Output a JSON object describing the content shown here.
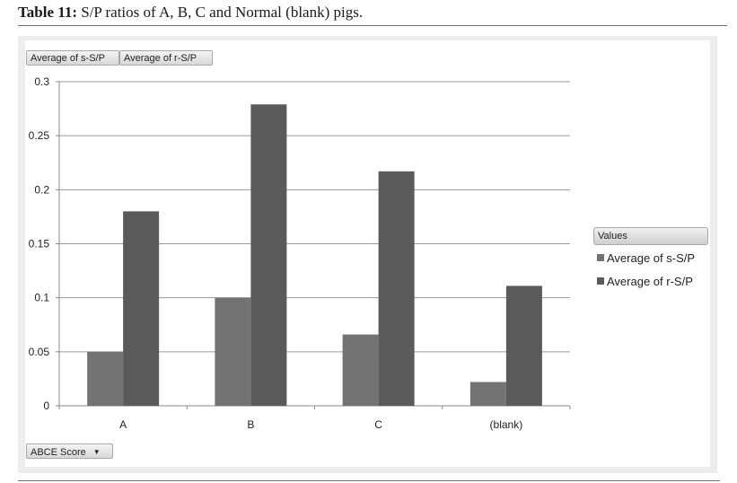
{
  "caption": {
    "label": "Table 11:",
    "text": "S/P ratios of A, B, C and Normal (blank) pigs."
  },
  "pivot": {
    "data_fields": [
      "Average of s-S/P",
      "Average of r-S/P"
    ],
    "row_field": "ABCE Score",
    "row_field_icon": "chevron-down-icon"
  },
  "chart_data": {
    "type": "bar",
    "categories": [
      "A",
      "B",
      "C",
      "(blank)"
    ],
    "series": [
      {
        "name": "Average of s-S/P",
        "values": [
          0.05,
          0.1,
          0.066,
          0.022
        ],
        "color": "#737373"
      },
      {
        "name": "Average of r-S/P",
        "values": [
          0.18,
          0.279,
          0.217,
          0.111
        ],
        "color": "#5a5a5a"
      }
    ],
    "ylim": [
      0,
      0.3
    ],
    "yticks": [
      "0",
      "0.05",
      "0.1",
      "0.15",
      "0.2",
      "0.25",
      "0.3"
    ],
    "grid": true,
    "legend": {
      "title": "Values",
      "placement": "right"
    }
  }
}
